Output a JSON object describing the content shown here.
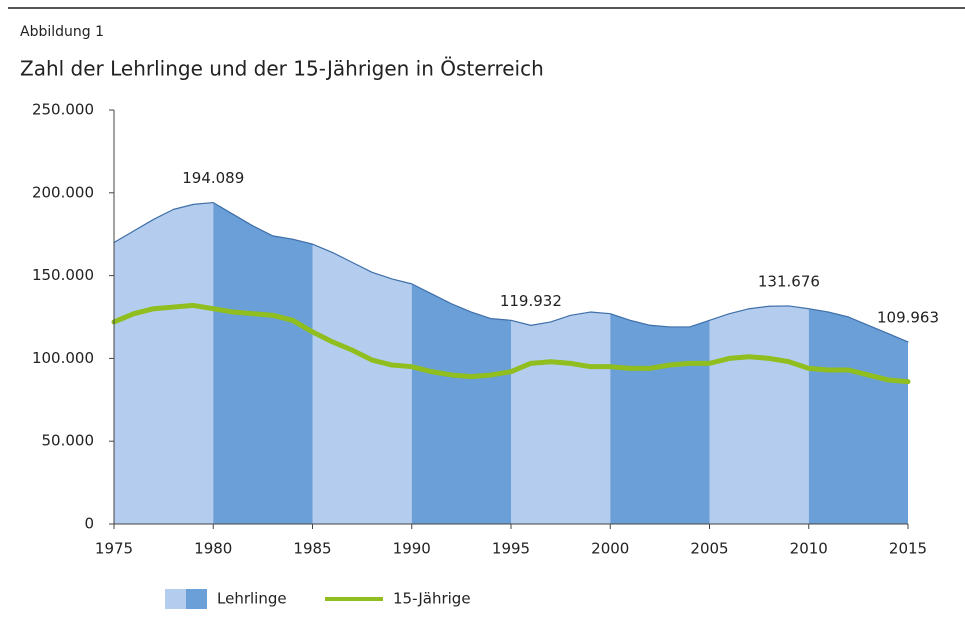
{
  "chart_data": {
    "type": "area",
    "supertitle": "Abbildung 1",
    "title": "Zahl der Lehrlinge und der 15-Jährigen in Österreich",
    "x": [
      1975,
      1976,
      1977,
      1978,
      1979,
      1980,
      1981,
      1982,
      1983,
      1984,
      1985,
      1986,
      1987,
      1988,
      1989,
      1990,
      1991,
      1992,
      1993,
      1994,
      1995,
      1996,
      1997,
      1998,
      1999,
      2000,
      2001,
      2002,
      2003,
      2004,
      2005,
      2006,
      2007,
      2008,
      2009,
      2010,
      2011,
      2012,
      2013,
      2014,
      2015
    ],
    "xlim": [
      1975,
      2015
    ],
    "xticks": [
      1975,
      1980,
      1985,
      1990,
      1995,
      2000,
      2005,
      2010,
      2015
    ],
    "ylim": [
      0,
      250000
    ],
    "yticks": [
      0,
      {
        "value": 50000,
        "label": "50.000"
      },
      {
        "value": 100000,
        "label": "100.000"
      },
      {
        "value": 150000,
        "label": "150.000"
      },
      {
        "value": 200000,
        "label": "200.000"
      },
      {
        "value": 250000,
        "label": "250.000"
      }
    ],
    "series": [
      {
        "name": "Lehrlinge",
        "kind": "area",
        "band_colors": [
          "#b4cdee",
          "#6a9fd8"
        ],
        "color": "#3f6fa9",
        "values": [
          170000,
          177000,
          184000,
          190000,
          193000,
          194089,
          187000,
          180000,
          174000,
          172000,
          169000,
          164000,
          158000,
          152000,
          148000,
          145000,
          139000,
          133000,
          128000,
          124000,
          123000,
          119932,
          122000,
          126000,
          128000,
          127000,
          123000,
          120000,
          119000,
          119000,
          123000,
          127000,
          130000,
          131500,
          131676,
          130000,
          128000,
          125000,
          120000,
          115000,
          109963
        ],
        "value_labels": [
          null,
          null,
          null,
          null,
          null,
          "194.089",
          null,
          null,
          null,
          null,
          null,
          null,
          null,
          null,
          null,
          null,
          null,
          null,
          null,
          null,
          null,
          "119.932",
          null,
          null,
          null,
          null,
          null,
          null,
          null,
          null,
          null,
          null,
          null,
          null,
          "131.676",
          null,
          null,
          null,
          null,
          null,
          "109.963"
        ]
      },
      {
        "name": "15-Jährige",
        "kind": "line",
        "color": "#8fbe1e",
        "values": [
          122000,
          127000,
          130000,
          131000,
          132000,
          130000,
          128000,
          127000,
          126000,
          123000,
          116000,
          110000,
          105000,
          99000,
          96000,
          95000,
          92000,
          90000,
          89000,
          90000,
          92000,
          97000,
          98000,
          97000,
          95000,
          95000,
          94000,
          94000,
          96000,
          97000,
          97000,
          100000,
          101000,
          100000,
          98000,
          94000,
          93000,
          93000,
          90000,
          87000,
          86000
        ]
      }
    ]
  }
}
